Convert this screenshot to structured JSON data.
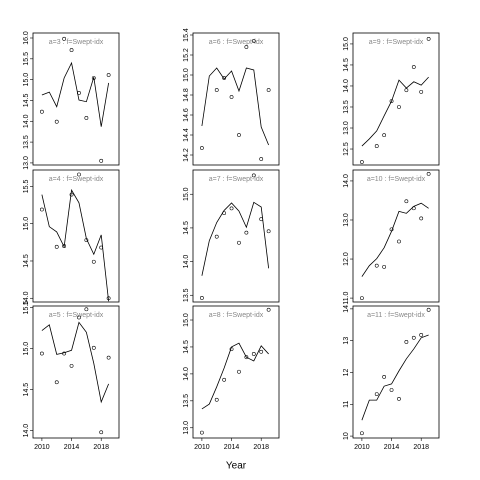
{
  "chart_data": [
    {
      "type": "scatter",
      "title": "a=3 : f=Swept-idx",
      "x": [
        2010,
        2011,
        2012,
        2013,
        2014,
        2015,
        2016,
        2017,
        2018,
        2019
      ],
      "xlim": [
        2008.8,
        2020.4
      ],
      "ylim": [
        12.95,
        16.12
      ],
      "yticks": [
        {
          "value": 13.0,
          "label": "13.0"
        },
        13.5,
        {
          "value": 14.0,
          "label": "14.0"
        },
        14.5,
        {
          "value": 15.0,
          "label": "15.0"
        },
        15.5,
        {
          "value": 16.0,
          "label": "16.0"
        }
      ],
      "series": [
        {
          "type": "scatter",
          "color": "#000000",
          "values": [
            14.23,
            null,
            13.99,
            15.98,
            15.71,
            14.68,
            14.08,
            15.04,
            13.05,
            15.11
          ]
        },
        {
          "type": "line",
          "color": "#000000",
          "values": [
            14.63,
            14.7,
            14.35,
            15.04,
            15.4,
            14.51,
            14.47,
            15.06,
            13.87,
            14.92
          ]
        }
      ]
    },
    {
      "type": "scatter",
      "title": "a=6 : f=Swept-idx",
      "x": [
        2010,
        2011,
        2012,
        2013,
        2014,
        2015,
        2016,
        2017,
        2018,
        2019
      ],
      "xlim": [
        2008.8,
        2020.4
      ],
      "ylim": [
        14.1,
        15.42
      ],
      "yticks": [
        14.2,
        14.4,
        14.6,
        14.8,
        {
          "value": 15.0,
          "label": "15.0"
        },
        15.2,
        15.4
      ],
      "series": [
        {
          "type": "scatter",
          "color": "#000000",
          "values": [
            14.27,
            null,
            14.85,
            14.97,
            14.78,
            14.4,
            15.28,
            15.34,
            14.16,
            14.85
          ]
        },
        {
          "type": "line",
          "color": "#000000",
          "values": [
            14.49,
            14.99,
            15.07,
            14.96,
            15.04,
            14.84,
            15.07,
            15.05,
            14.48,
            14.3
          ]
        }
      ]
    },
    {
      "type": "scatter",
      "title": "a=9 : f=Swept-idx",
      "x": [
        2010,
        2011,
        2012,
        2013,
        2014,
        2015,
        2016,
        2017,
        2018,
        2019
      ],
      "xlim": [
        2008.8,
        2020.4
      ],
      "ylim": [
        12.12,
        15.26
      ],
      "yticks": [
        12.5,
        {
          "value": 13.0,
          "label": "13.0"
        },
        13.5,
        {
          "value": 14.0,
          "label": "14.0"
        },
        14.5,
        {
          "value": 15.0,
          "label": "15.0"
        }
      ],
      "series": [
        {
          "type": "scatter",
          "color": "#000000",
          "values": [
            12.19,
            null,
            12.57,
            12.83,
            13.64,
            13.5,
            13.9,
            14.45,
            13.86,
            15.12
          ]
        },
        {
          "type": "line",
          "color": "#000000",
          "values": [
            12.57,
            12.74,
            12.93,
            13.29,
            13.64,
            14.14,
            13.95,
            14.1,
            14.02,
            14.21
          ]
        }
      ]
    },
    {
      "type": "scatter",
      "title": "a=4 : f=Swept-idx",
      "x": [
        2010,
        2011,
        2012,
        2013,
        2014,
        2015,
        2016,
        2017,
        2018,
        2019
      ],
      "xlim": [
        2008.8,
        2020.4
      ],
      "ylim": [
        13.95,
        15.72
      ],
      "yticks": [
        {
          "value": 14.0,
          "label": "14.0"
        },
        14.5,
        {
          "value": 15.0,
          "label": "15.0"
        },
        15.5
      ],
      "series": [
        {
          "type": "scatter",
          "color": "#000000",
          "values": [
            15.19,
            null,
            14.69,
            14.7,
            15.39,
            15.66,
            14.78,
            14.49,
            14.68,
            14.0
          ]
        },
        {
          "type": "line",
          "color": "#000000",
          "values": [
            15.39,
            14.96,
            14.89,
            14.69,
            15.45,
            15.28,
            14.8,
            14.59,
            14.85,
            13.96
          ]
        }
      ]
    },
    {
      "type": "scatter",
      "title": "a=7 : f=Swept-idx",
      "x": [
        2010,
        2011,
        2012,
        2013,
        2014,
        2015,
        2016,
        2017,
        2018,
        2019
      ],
      "xlim": [
        2008.8,
        2020.4
      ],
      "ylim": [
        13.4,
        15.36
      ],
      "yticks": [
        13.5,
        {
          "value": 14.0,
          "label": "14.0"
        },
        14.5,
        {
          "value": 15.0,
          "label": "15.0"
        }
      ],
      "series": [
        {
          "type": "scatter",
          "color": "#000000",
          "values": [
            13.46,
            null,
            14.37,
            14.72,
            14.79,
            14.28,
            14.43,
            15.28,
            14.63,
            14.45
          ]
        },
        {
          "type": "line",
          "color": "#000000",
          "values": [
            13.79,
            14.31,
            14.58,
            14.76,
            14.87,
            14.75,
            14.51,
            14.88,
            14.81,
            13.9
          ]
        }
      ]
    },
    {
      "type": "scatter",
      "title": "a=10 : f=Swept-idx",
      "x": [
        2010,
        2011,
        2012,
        2013,
        2014,
        2015,
        2016,
        2017,
        2018,
        2019
      ],
      "xlim": [
        2008.8,
        2020.4
      ],
      "ylim": [
        10.9,
        14.28
      ],
      "yticks": [
        {
          "value": 11.0,
          "label": "11.0"
        },
        {
          "value": 12.0,
          "label": "12.0"
        },
        {
          "value": 13.0,
          "label": "13.0"
        },
        {
          "value": 14.0,
          "label": "14.0"
        }
      ],
      "series": [
        {
          "type": "scatter",
          "color": "#000000",
          "values": [
            11.0,
            null,
            11.83,
            11.8,
            12.76,
            12.45,
            13.48,
            13.3,
            13.04,
            14.18
          ]
        },
        {
          "type": "line",
          "color": "#000000",
          "values": [
            11.55,
            11.83,
            12.01,
            12.29,
            12.71,
            13.22,
            13.17,
            13.35,
            13.43,
            13.3
          ]
        }
      ]
    },
    {
      "type": "scatter",
      "title": "a=5 : f=Swept-idx",
      "x": [
        2010,
        2011,
        2012,
        2013,
        2014,
        2015,
        2016,
        2017,
        2018,
        2019
      ],
      "xlim": [
        2008.8,
        2020.4
      ],
      "ylim": [
        13.91,
        15.52
      ],
      "yticks": [
        {
          "value": 14.0,
          "label": "14.0"
        },
        14.5,
        {
          "value": 15.0,
          "label": "15.0"
        },
        15.5
      ],
      "xticks": [
        2010,
        2014,
        2018
      ],
      "series": [
        {
          "type": "scatter",
          "color": "#000000",
          "values": [
            14.94,
            null,
            14.59,
            14.94,
            14.79,
            15.38,
            15.48,
            15.01,
            13.98,
            14.89
          ]
        },
        {
          "type": "line",
          "color": "#000000",
          "values": [
            15.22,
            15.29,
            14.93,
            14.95,
            14.98,
            15.32,
            15.2,
            14.82,
            14.35,
            14.57
          ]
        }
      ]
    },
    {
      "type": "scatter",
      "title": "a=8 : f=Swept-idx",
      "x": [
        2010,
        2011,
        2012,
        2013,
        2014,
        2015,
        2016,
        2017,
        2018,
        2019
      ],
      "xlim": [
        2008.8,
        2020.4
      ],
      "ylim": [
        12.81,
        15.26
      ],
      "yticks": [
        {
          "value": 13.0,
          "label": "13.0"
        },
        13.5,
        {
          "value": 14.0,
          "label": "14.0"
        },
        14.5,
        {
          "value": 15.0,
          "label": "15.0"
        }
      ],
      "xticks": [
        2010,
        2014,
        2018
      ],
      "xlabel": "Year",
      "series": [
        {
          "type": "scatter",
          "color": "#000000",
          "values": [
            12.91,
            null,
            13.52,
            13.89,
            14.46,
            14.04,
            14.31,
            14.37,
            14.41,
            15.19
          ]
        },
        {
          "type": "line",
          "color": "#000000",
          "values": [
            13.35,
            13.44,
            13.76,
            14.11,
            14.5,
            14.57,
            14.31,
            14.24,
            14.52,
            14.37
          ]
        }
      ]
    },
    {
      "type": "scatter",
      "title": "a=11 : f=Swept-idx",
      "x": [
        2010,
        2011,
        2012,
        2013,
        2014,
        2015,
        2016,
        2017,
        2018,
        2019
      ],
      "xlim": [
        2008.8,
        2020.4
      ],
      "ylim": [
        9.94,
        14.09
      ],
      "yticks": [
        10,
        11,
        12,
        13,
        14
      ],
      "xticks": [
        2010,
        2014,
        2018
      ],
      "series": [
        {
          "type": "scatter",
          "color": "#000000",
          "values": [
            10.09,
            null,
            11.32,
            11.86,
            11.45,
            11.17,
            12.96,
            13.09,
            13.18,
            13.97
          ]
        },
        {
          "type": "line",
          "color": "#000000",
          "values": [
            10.5,
            11.13,
            11.13,
            11.57,
            11.64,
            12.05,
            12.43,
            12.74,
            13.09,
            13.18
          ]
        }
      ]
    }
  ]
}
